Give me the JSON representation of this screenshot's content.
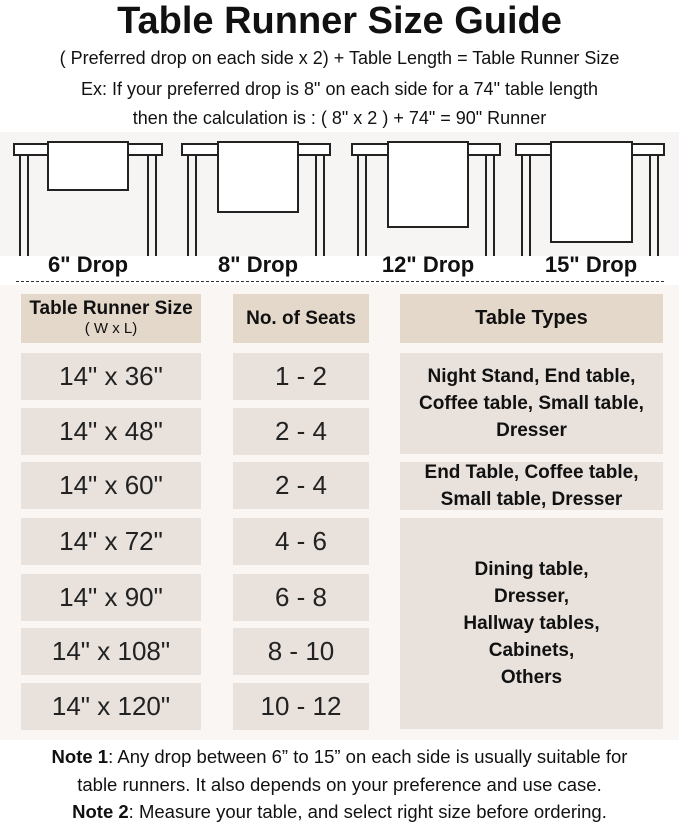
{
  "title": "Table Runner Size Guide",
  "subtitle": [
    "( Preferred drop on each side x 2) + Table Length = Table Runner Size",
    "Ex: If your preferred drop is 8\" on each side for a 74\" table length",
    "then the calculation is : ( 8\" x 2 ) + 74\" = 90\" Runner"
  ],
  "drops": [
    "6\" Drop",
    "8\" Drop",
    "12\" Drop",
    "15\" Drop"
  ],
  "table": {
    "headers": {
      "size": "Table Runner Size",
      "size_sub": "( W x L)",
      "seats": "No. of Seats",
      "types": "Table Types"
    },
    "rows": [
      {
        "size": "14\" x 36\"",
        "seats": "1 - 2"
      },
      {
        "size": "14\" x 48\"",
        "seats": "2 - 4"
      },
      {
        "size": "14\" x 60\"",
        "seats": "2 - 4"
      },
      {
        "size": "14\" x 72\"",
        "seats": "4 - 6"
      },
      {
        "size": "14\" x 90\"",
        "seats": "6 - 8"
      },
      {
        "size": "14\" x 108\"",
        "seats": "8 - 10"
      },
      {
        "size": "14\" x 120\"",
        "seats": "10 - 12"
      }
    ],
    "type_groups": [
      "Night Stand, End table, Coffee table, Small table, Dresser",
      "End Table, Coffee table, Small table, Dresser",
      "Dining table, Dresser, Hallway tables, Cabinets, Others"
    ]
  },
  "notes": [
    {
      "label": "Note 1",
      "text": ": Any drop between 6” to 15” on each side is usually suitable for"
    },
    {
      "label": "",
      "text": "table runners. It also depends on your preference and use case."
    },
    {
      "label": "Note 2",
      "text": ": Measure your table, and select right size before ordering."
    }
  ],
  "colors": {
    "header_cell": "#e4d8ca",
    "row_cell": "#e8e1dc",
    "panel": "#f9f6f3"
  }
}
